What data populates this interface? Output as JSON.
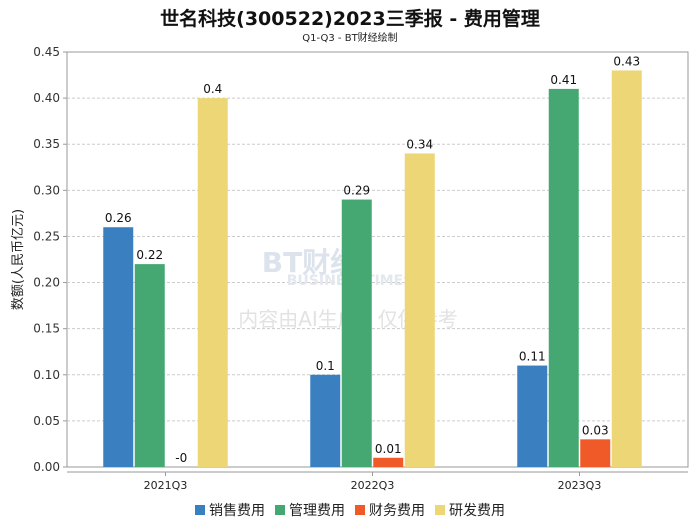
{
  "chart_data": {
    "type": "bar",
    "title": "世名科技(300522)2023三季报 - 费用管理",
    "subtitle": "Q1-Q3 - BT财经绘制",
    "ylabel": "数额(人民币亿元)",
    "xlabel": "",
    "ylim": [
      0,
      0.45
    ],
    "yticks": [
      "0.00",
      "0.05",
      "0.10",
      "0.15",
      "0.20",
      "0.25",
      "0.30",
      "0.35",
      "0.40",
      "0.45"
    ],
    "grid": true,
    "legend_position": "bottom",
    "categories": [
      "2021Q3",
      "2022Q3",
      "2023Q3"
    ],
    "series": [
      {
        "name": "销售费用",
        "color": "#3a80c0",
        "values": [
          0.26,
          0.1,
          0.11
        ],
        "labels": [
          "0.26",
          "0.1",
          "0.11"
        ]
      },
      {
        "name": "管理费用",
        "color": "#45a872",
        "values": [
          0.22,
          0.29,
          0.41
        ],
        "labels": [
          "0.22",
          "0.29",
          "0.41"
        ]
      },
      {
        "name": "财务费用",
        "color": "#f05a28",
        "values": [
          0,
          0.01,
          0.03
        ],
        "labels": [
          "-0",
          "0.01",
          "0.03"
        ]
      },
      {
        "name": "研发费用",
        "color": "#edd676",
        "values": [
          0.4,
          0.34,
          0.43
        ],
        "labels": [
          "0.4",
          "0.34",
          "0.43"
        ]
      }
    ]
  },
  "watermark": {
    "brand": "BT财经",
    "brand_en": "BUSINESSTIMES",
    "notice": "内容由AI生成，仅供参考"
  }
}
